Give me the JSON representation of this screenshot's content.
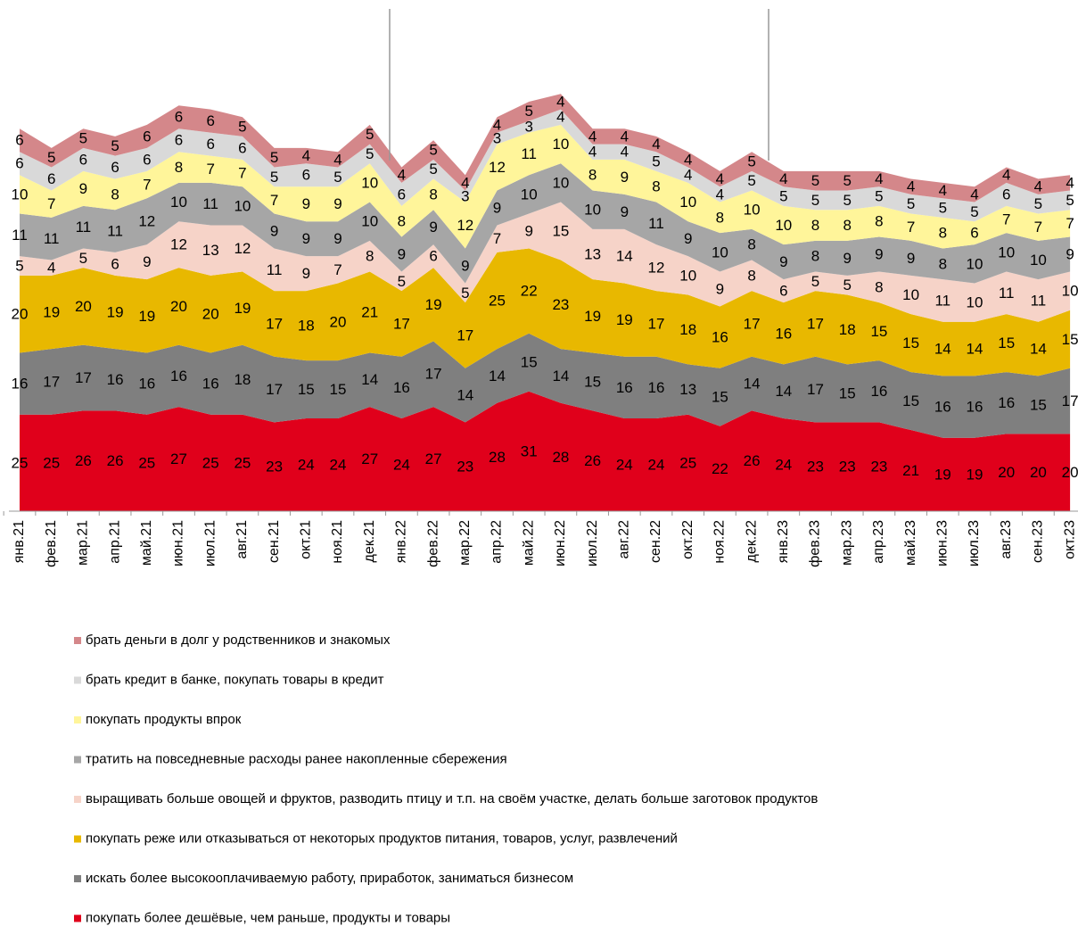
{
  "chart_data": {
    "type": "stacked-area",
    "categories": [
      "янв.21",
      "фев.21",
      "мар.21",
      "апр.21",
      "май.21",
      "июн.21",
      "июл.21",
      "авг.21",
      "сен.21",
      "окт.21",
      "ноя.21",
      "дек.21",
      "янв.22",
      "фев.22",
      "мар.22",
      "апр.22",
      "май.22",
      "июн.22",
      "июл.22",
      "авг.22",
      "сен.22",
      "окт.22",
      "ноя.22",
      "дек.22",
      "янв.23",
      "фев.23",
      "мар.23",
      "апр.23",
      "май.23",
      "июн.23",
      "июл.23",
      "авг.23",
      "сен.23",
      "окт.23"
    ],
    "series": [
      {
        "name": "покупать более дешёвые, чем раньше, продукты и товары",
        "color": "#e0001b",
        "values": [
          25,
          25,
          26,
          26,
          25,
          27,
          25,
          25,
          23,
          24,
          24,
          27,
          24,
          27,
          23,
          28,
          31,
          28,
          26,
          24,
          24,
          25,
          22,
          26,
          24,
          23,
          23,
          23,
          21,
          19,
          19,
          20,
          20,
          20
        ]
      },
      {
        "name": "искать более высокооплачиваемую работу, приработок, заниматься бизнесом",
        "color": "#7f7f7f",
        "values": [
          16,
          17,
          17,
          16,
          16,
          16,
          16,
          18,
          17,
          15,
          15,
          14,
          16,
          17,
          14,
          14,
          15,
          14,
          15,
          16,
          16,
          13,
          15,
          14,
          14,
          17,
          15,
          16,
          15,
          16,
          16,
          16,
          15,
          17
        ]
      },
      {
        "name": "покупать реже или отказываться от некоторых продуктов питания, товаров, услуг, развлечений",
        "color": "#e8b800",
        "values": [
          20,
          19,
          20,
          19,
          19,
          20,
          20,
          19,
          17,
          18,
          20,
          21,
          17,
          19,
          17,
          25,
          22,
          23,
          19,
          19,
          17,
          18,
          16,
          17,
          16,
          17,
          18,
          15,
          15,
          14,
          14,
          15,
          14,
          15
        ]
      },
      {
        "name": "выращивать больше овощей и фруктов, разводить птицу и т.п. на своём участке, делать больше заготовок продуктов",
        "color": "#f6d3c8",
        "values": [
          5,
          4,
          5,
          6,
          9,
          12,
          13,
          12,
          11,
          9,
          7,
          8,
          5,
          6,
          5,
          7,
          9,
          15,
          13,
          14,
          12,
          10,
          9,
          8,
          6,
          5,
          5,
          8,
          10,
          11,
          10,
          11,
          11,
          10
        ]
      },
      {
        "name": "тратить на повседневные расходы ранее накопленные сбережения",
        "color": "#a6a6a6",
        "values": [
          11,
          11,
          11,
          11,
          12,
          10,
          11,
          10,
          9,
          9,
          9,
          10,
          9,
          9,
          9,
          9,
          10,
          10,
          10,
          9,
          11,
          9,
          10,
          8,
          9,
          8,
          9,
          9,
          9,
          8,
          10,
          10,
          10,
          9
        ]
      },
      {
        "name": "покупать продукты впрок",
        "color": "#fff59a",
        "values": [
          10,
          7,
          9,
          8,
          7,
          8,
          7,
          7,
          7,
          9,
          9,
          10,
          8,
          8,
          12,
          12,
          11,
          10,
          8,
          9,
          8,
          10,
          8,
          10,
          10,
          8,
          8,
          8,
          7,
          8,
          6,
          7,
          7,
          7
        ]
      },
      {
        "name": "брать кредит в банке, покупать товары в кредит",
        "color": "#d9d9d9",
        "values": [
          6,
          6,
          6,
          6,
          6,
          6,
          6,
          6,
          5,
          6,
          5,
          5,
          6,
          5,
          3,
          3,
          3,
          4,
          4,
          4,
          5,
          4,
          4,
          5,
          5,
          5,
          5,
          5,
          5,
          5,
          5,
          6,
          5,
          5
        ]
      },
      {
        "name": "брать деньги в долг у родственников и знакомых",
        "color": "#d4878a",
        "values": [
          6,
          5,
          5,
          5,
          6,
          6,
          6,
          5,
          5,
          4,
          4,
          5,
          4,
          5,
          4,
          4,
          5,
          4,
          4,
          4,
          4,
          4,
          4,
          5,
          4,
          5,
          5,
          4,
          4,
          4,
          4,
          4,
          4,
          4
        ]
      }
    ],
    "ylim": [
      0,
      130
    ]
  }
}
